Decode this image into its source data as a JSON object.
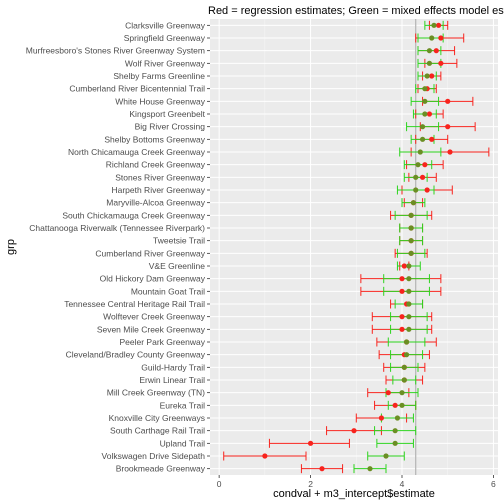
{
  "chart_data": {
    "type": "scatter",
    "title": "Red = regression estimates; Green = mixed effects model estimates",
    "xlabel": "condval + m3_intercept$estimate",
    "ylabel": "grp",
    "xlim": [
      -0.2,
      6.1
    ],
    "x_ticks": [
      0,
      2,
      4,
      6
    ],
    "vline": 4.3,
    "grid": true,
    "background": "#ebebeb",
    "colors": {
      "regression": "#f8231d",
      "mixed": "#2dd41e",
      "mixed_point": "#6b8e23",
      "vline": "#b3b3b3"
    },
    "categories": [
      "Clarksville Greenway",
      "Springfield Greenway",
      "Murfreesboro's Stones River Greenway System",
      "Wolf River Greenway",
      "Shelby Farms Greenline",
      "Cumberland River Bicentennial Trail",
      "White House Greenway",
      "Kingsport Greenbelt",
      "Big River Crossing",
      "Shelby Bottoms Greenway",
      "North Chicamauga Creek Greenway",
      "Richland Creek Greenway",
      "Stones River Greenway",
      "Harpeth River Greenway",
      "Maryville-Alcoa Greenway",
      "South Chickamauga Creek Greenway",
      "Chattanooga Riverwalk (Tennessee Riverpark)",
      "Tweetsie Trail",
      "Cumberland River Greenway",
      "V&E Greenline",
      "Old Hickory Dam Greenway",
      "Mountain Goat Trail",
      "Tennessee Central Heritage Rail Trail",
      "Wolftever Creek Greenway",
      "Seven Mile Creek Greenway",
      "Peeler Park Greenway",
      "Cleveland/Bradley County Greenway",
      "Guild-Hardy Trail",
      "Erwin Linear Trail",
      "Mill Creek Greenway (TN)",
      "Eureka Trail",
      "Knoxville City Greenways",
      "South Carthage Rail Trail",
      "Upland Trail",
      "Volkswagen Drive Sidepath",
      "Brookmeade Greenway"
    ],
    "series": [
      {
        "key": "regression",
        "estimate": [
          4.8,
          4.85,
          4.75,
          4.85,
          4.65,
          4.55,
          5.0,
          4.6,
          5.0,
          4.65,
          5.05,
          4.5,
          4.45,
          4.55,
          4.25,
          4.2,
          4.2,
          4.2,
          4.2,
          4.05,
          4.0,
          4.0,
          4.1,
          4.0,
          4.0,
          4.1,
          4.05,
          4.05,
          4.05,
          3.7,
          3.85,
          3.55,
          2.95,
          2.0,
          1.0,
          2.25
        ],
        "low": [
          4.6,
          4.3,
          4.35,
          4.5,
          4.45,
          4.35,
          4.45,
          4.3,
          4.4,
          4.3,
          4.2,
          4.1,
          4.15,
          4.0,
          4.05,
          3.75,
          3.95,
          3.95,
          3.85,
          3.95,
          3.1,
          3.1,
          3.75,
          3.35,
          3.35,
          3.45,
          3.5,
          3.6,
          3.65,
          3.25,
          3.4,
          3.0,
          2.35,
          1.1,
          0.1,
          1.8
        ],
        "high": [
          5.0,
          5.35,
          5.15,
          5.2,
          4.85,
          4.75,
          5.55,
          4.9,
          5.6,
          5.0,
          5.9,
          4.9,
          4.75,
          5.1,
          4.45,
          4.65,
          4.45,
          4.45,
          4.55,
          4.15,
          4.85,
          4.85,
          4.45,
          4.65,
          4.65,
          4.75,
          4.6,
          4.5,
          4.45,
          4.15,
          4.3,
          4.1,
          3.55,
          2.85,
          1.9,
          2.7
        ]
      },
      {
        "key": "mixed",
        "estimate": [
          4.7,
          4.65,
          4.6,
          4.6,
          4.55,
          4.5,
          4.5,
          4.5,
          4.45,
          4.45,
          4.4,
          4.35,
          4.3,
          4.3,
          4.25,
          4.2,
          4.2,
          4.2,
          4.2,
          4.15,
          4.15,
          4.15,
          4.15,
          4.15,
          4.15,
          4.1,
          4.1,
          4.05,
          4.05,
          4.0,
          4.0,
          3.9,
          3.85,
          3.85,
          3.65,
          3.3
        ],
        "low": [
          4.5,
          4.35,
          4.35,
          4.35,
          4.35,
          4.3,
          4.2,
          4.25,
          4.1,
          4.2,
          3.95,
          4.05,
          4.05,
          3.9,
          4.0,
          3.85,
          3.95,
          3.95,
          3.9,
          3.9,
          3.6,
          3.6,
          3.85,
          3.75,
          3.75,
          3.7,
          3.75,
          3.75,
          3.8,
          3.65,
          3.7,
          3.55,
          3.4,
          3.45,
          3.25,
          2.95
        ],
        "high": [
          4.9,
          4.9,
          4.85,
          4.85,
          4.75,
          4.7,
          4.8,
          4.75,
          4.8,
          4.7,
          4.85,
          4.65,
          4.55,
          4.7,
          4.5,
          4.55,
          4.45,
          4.45,
          4.5,
          4.4,
          4.6,
          4.6,
          4.45,
          4.55,
          4.55,
          4.5,
          4.45,
          4.35,
          4.3,
          4.35,
          4.3,
          4.25,
          4.3,
          4.25,
          4.05,
          3.65
        ]
      }
    ]
  }
}
